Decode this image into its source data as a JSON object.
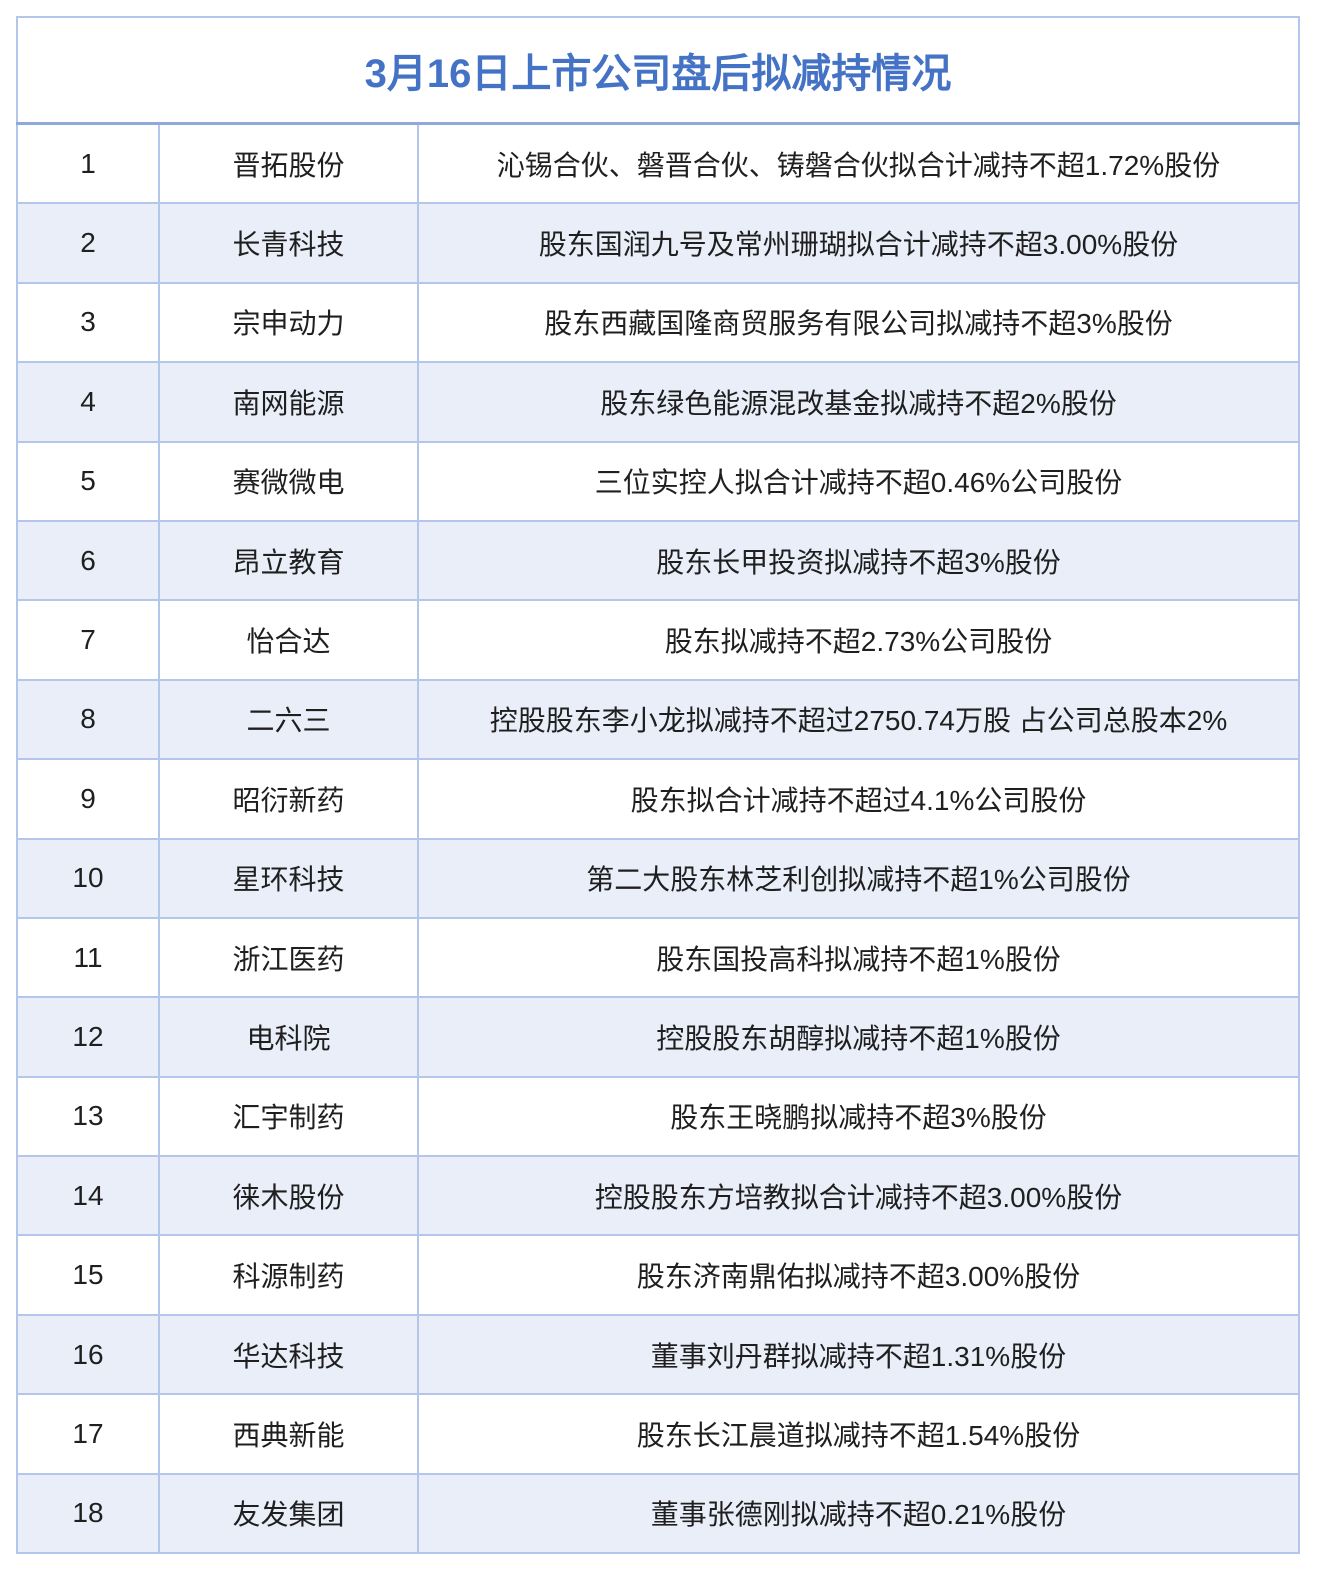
{
  "header": {
    "title": "3月16日上市公司盘后拟减持情况"
  },
  "table": {
    "rows": [
      [
        1,
        "晋拓股份",
        "沁锡合伙、磐晋合伙、铸磐合伙拟合计减持不超1.72%股份"
      ],
      [
        2,
        "长青科技",
        "股东国润九号及常州珊瑚拟合计减持不超3.00%股份"
      ],
      [
        3,
        "宗申动力",
        "股东西藏国隆商贸服务有限公司拟减持不超3%股份"
      ],
      [
        4,
        "南网能源",
        "股东绿色能源混改基金拟减持不超2%股份"
      ],
      [
        5,
        "赛微微电",
        "三位实控人拟合计减持不超0.46%公司股份"
      ],
      [
        6,
        "昂立教育",
        "股东长甲投资拟减持不超3%股份"
      ],
      [
        7,
        "怡合达",
        "股东拟减持不超2.73%公司股份"
      ],
      [
        8,
        "二六三",
        "控股股东李小龙拟减持不超过2750.74万股 占公司总股本2%"
      ],
      [
        9,
        "昭衍新药",
        "股东拟合计减持不超过4.1%公司股份"
      ],
      [
        10,
        "星环科技",
        "第二大股东林芝利创拟减持不超1%公司股份"
      ],
      [
        11,
        "浙江医药",
        "股东国投高科拟减持不超1%股份"
      ],
      [
        12,
        "电科院",
        "控股股东胡醇拟减持不超1%股份"
      ],
      [
        13,
        "汇宇制药",
        "股东王晓鹏拟减持不超3%股份"
      ],
      [
        14,
        "徕木股份",
        "控股股东方培教拟合计减持不超3.00%股份"
      ],
      [
        15,
        "科源制药",
        "股东济南鼎佑拟减持不超3.00%股份"
      ],
      [
        16,
        "华达科技",
        "董事刘丹群拟减持不超1.31%股份"
      ],
      [
        17,
        "西典新能",
        "股东长江晨道拟减持不超1.54%股份"
      ],
      [
        18,
        "友发集团",
        "董事张德刚拟减持不超0.21%股份"
      ]
    ]
  }
}
